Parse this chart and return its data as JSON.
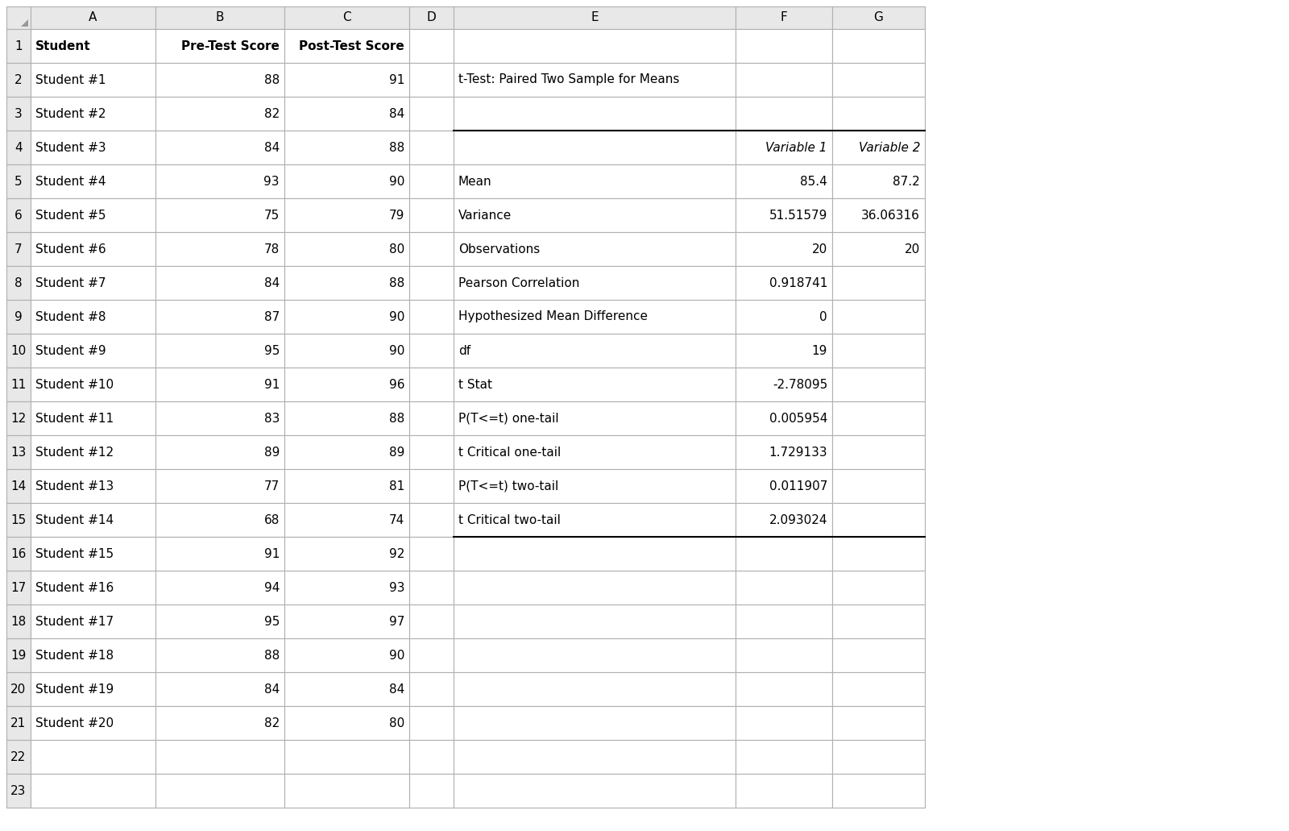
{
  "students": [
    "Student #1",
    "Student #2",
    "Student #3",
    "Student #4",
    "Student #5",
    "Student #6",
    "Student #7",
    "Student #8",
    "Student #9",
    "Student #10",
    "Student #11",
    "Student #12",
    "Student #13",
    "Student #14",
    "Student #15",
    "Student #16",
    "Student #17",
    "Student #18",
    "Student #19",
    "Student #20"
  ],
  "pre_test": [
    88,
    82,
    84,
    93,
    75,
    78,
    84,
    87,
    95,
    91,
    83,
    89,
    77,
    68,
    91,
    94,
    95,
    88,
    84,
    82
  ],
  "post_test": [
    91,
    84,
    88,
    90,
    79,
    80,
    88,
    90,
    90,
    96,
    88,
    89,
    81,
    74,
    92,
    93,
    97,
    90,
    84,
    80
  ],
  "col_letters": [
    "A",
    "B",
    "C",
    "D",
    "E",
    "F",
    "G"
  ],
  "ttest_title": "t-Test: Paired Two Sample for Means",
  "var1_header": "Variable 1",
  "var2_header": "Variable 2",
  "ttest_labels": [
    "Mean",
    "Variance",
    "Observations",
    "Pearson Correlation",
    "Hypothesized Mean Difference",
    "df",
    "t Stat",
    "P(T<=t) one-tail",
    "t Critical one-tail",
    "P(T<=t) two-tail",
    "t Critical two-tail"
  ],
  "var1_vals": [
    "85.4",
    "51.51579",
    "20",
    "0.918741",
    "0",
    "19",
    "-2.78095",
    "0.005954",
    "1.729133",
    "0.011907",
    "2.093024"
  ],
  "var2_vals": [
    "87.2",
    "36.06316",
    "20",
    "",
    "",
    "",
    "",
    "",
    "",
    "",
    ""
  ],
  "bg_color": "#ffffff",
  "header_bg": "#e8e8e8",
  "grid_color": "#b0b0b0",
  "figsize": [
    16.0,
    10.31
  ]
}
